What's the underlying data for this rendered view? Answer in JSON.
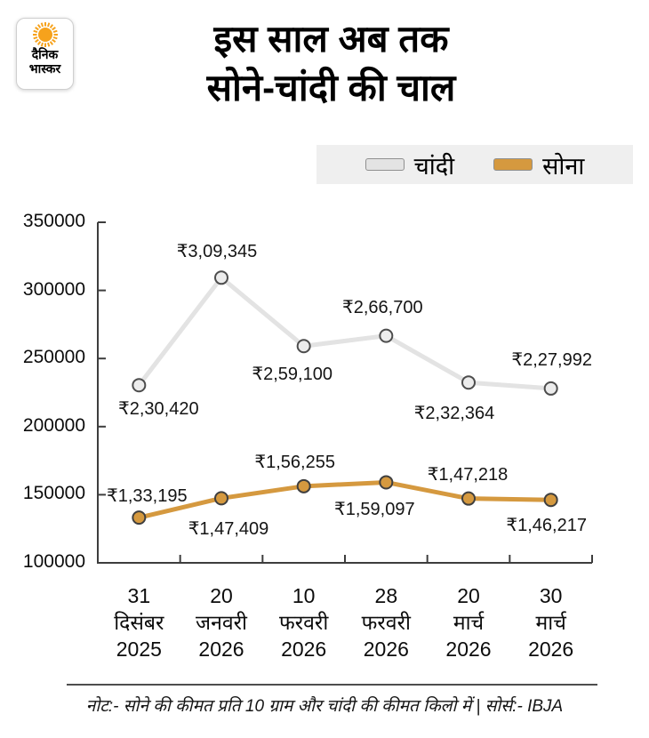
{
  "logo": {
    "line1": "दैनिक",
    "line2": "भास्कर"
  },
  "title": {
    "line1": "इस साल अब तक",
    "line2": "सोने-चांदी की चाल"
  },
  "legend": [
    {
      "label": "चांदी",
      "color": "#e3e3e3"
    },
    {
      "label": "सोना",
      "color": "#d5993f"
    }
  ],
  "footer": {
    "note": "नोट:- सोने की कीमत प्रति 10 ग्राम और चांदी की कीमत किलो में | सोर्स:- IBJA"
  },
  "chart_data": {
    "type": "line",
    "title": "इस साल अब तक सोने-चांदी की चाल",
    "xlabel": "",
    "ylabel": "",
    "ylim": [
      100000,
      350000
    ],
    "yticks": [
      100000,
      150000,
      200000,
      250000,
      300000,
      350000
    ],
    "grid": false,
    "legend_position": "top-right",
    "categories": [
      [
        "31",
        "दिसंबर",
        "2025"
      ],
      [
        "20",
        "जनवरी",
        "2026"
      ],
      [
        "10",
        "फरवरी",
        "2026"
      ],
      [
        "28",
        "फरवरी",
        "2026"
      ],
      [
        "20",
        "मार्च",
        "2026"
      ],
      [
        "30",
        "मार्च",
        "2026"
      ]
    ],
    "series": [
      {
        "name": "चांदी",
        "color": "#e3e3e3",
        "marker_fill": "#ececec",
        "marker_stroke": "#4d4d4d",
        "values": [
          230420,
          309345,
          259100,
          266700,
          232364,
          227992
        ],
        "labels": [
          "₹2,30,420",
          "₹3,09,345",
          "₹2,59,100",
          "₹2,66,700",
          "₹2,32,364",
          "₹2,27,992"
        ],
        "label_offsets": [
          {
            "dx": 22,
            "dy": 14
          },
          {
            "dx": -5,
            "dy": -42
          },
          {
            "dx": -13,
            "dy": 19
          },
          {
            "dx": -4,
            "dy": -45
          },
          {
            "dx": -16,
            "dy": 22
          },
          {
            "dx": 1,
            "dy": -45
          }
        ]
      },
      {
        "name": "सोना",
        "color": "#d5993f",
        "marker_fill": "#d5993f",
        "marker_stroke": "#3f3f3f",
        "values": [
          133195,
          147409,
          156255,
          159097,
          147218,
          146217
        ],
        "labels": [
          "₹1,33,195",
          "₹1,47,409",
          "₹1,56,255",
          "₹1,59,097",
          "₹1,47,218",
          "₹1,46,217"
        ],
        "label_offsets": [
          {
            "dx": 9,
            "dy": -37
          },
          {
            "dx": 8,
            "dy": 22
          },
          {
            "dx": -10,
            "dy": -40
          },
          {
            "dx": -13,
            "dy": 18
          },
          {
            "dx": -1,
            "dy": -40
          },
          {
            "dx": -5,
            "dy": 16
          }
        ]
      }
    ]
  }
}
